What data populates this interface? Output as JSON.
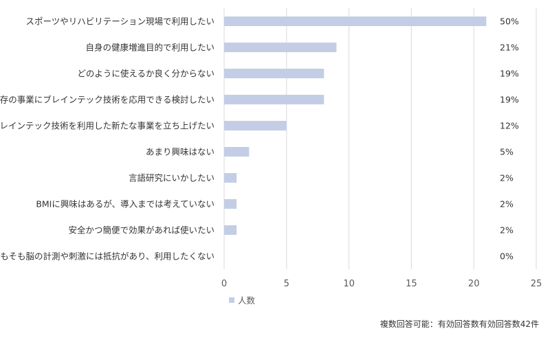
{
  "chart_data": {
    "type": "bar",
    "orientation": "horizontal",
    "categories": [
      "スポーツやリハビリテーション現場で利用したい",
      "自身の健康増進目的で利用したい",
      "どのように使えるか良く分からない",
      "既存の事業にブレインテック技術を応用できる検討したい",
      "ブレインテック技術を利用した新たな事業を立ち上げたい",
      "あまり興味はない",
      "言語研究にいかしたい",
      "BMIに興味はあるが、導入までは考えていない",
      "安全かつ簡便で効果があれば使いたい",
      "そもそも脳の計測や刺激には抵抗があり、利用したくない"
    ],
    "series": [
      {
        "name": "人数",
        "values": [
          21,
          9,
          8,
          8,
          5,
          2,
          1,
          1,
          1,
          0
        ]
      }
    ],
    "percent_labels": [
      "50%",
      "21%",
      "19%",
      "19%",
      "12%",
      "5%",
      "2%",
      "2%",
      "2%",
      "0%"
    ],
    "xlim": [
      0,
      25
    ],
    "xticks": [
      "0",
      "5",
      "10",
      "15",
      "20",
      "25"
    ],
    "grid": true,
    "legend_position": "bottom-left",
    "bar_color": "#c3cee6"
  },
  "footnote": "複数回答可能：有効回答数有効回答数42件"
}
